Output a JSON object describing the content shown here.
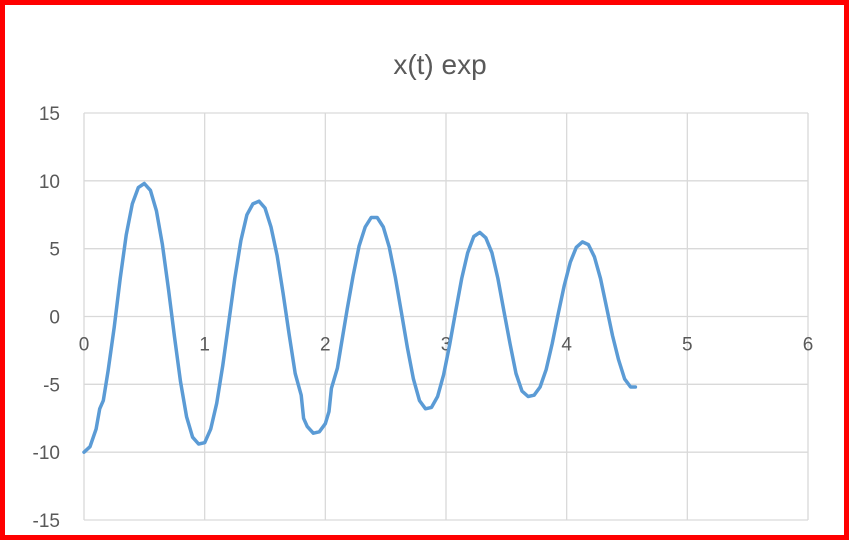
{
  "chart_data": {
    "type": "line",
    "title": "x(t) exp",
    "xlabel": "",
    "ylabel": "",
    "xlim": [
      0,
      6
    ],
    "ylim": [
      -15,
      15
    ],
    "x_ticks": [
      0,
      1,
      2,
      3,
      4,
      5,
      6
    ],
    "y_ticks": [
      15,
      10,
      5,
      0,
      -5,
      -10,
      -15
    ],
    "x_tick_labels": [
      "0",
      "1",
      "2",
      "3",
      "4",
      "5",
      "6"
    ],
    "y_tick_labels": [
      "15",
      "10",
      "5",
      "0",
      "-5",
      "-10",
      "-15"
    ],
    "grid": true,
    "legend": "none",
    "colors": {
      "line": "#5b9bd5",
      "grid": "#d9d9d9",
      "border": "#ff0000",
      "text": "#595959"
    },
    "series": [
      {
        "points": [
          [
            0.0,
            -10.0
          ],
          [
            0.05,
            -9.6
          ],
          [
            0.1,
            -8.3
          ],
          [
            0.13,
            -6.8
          ],
          [
            0.16,
            -6.2
          ],
          [
            0.2,
            -4.0
          ],
          [
            0.25,
            -0.8
          ],
          [
            0.3,
            2.8
          ],
          [
            0.35,
            6.0
          ],
          [
            0.4,
            8.3
          ],
          [
            0.45,
            9.5
          ],
          [
            0.5,
            9.8
          ],
          [
            0.55,
            9.3
          ],
          [
            0.6,
            7.8
          ],
          [
            0.65,
            5.3
          ],
          [
            0.7,
            2.0
          ],
          [
            0.75,
            -1.5
          ],
          [
            0.8,
            -4.8
          ],
          [
            0.85,
            -7.4
          ],
          [
            0.9,
            -8.9
          ],
          [
            0.95,
            -9.4
          ],
          [
            1.0,
            -9.3
          ],
          [
            1.05,
            -8.3
          ],
          [
            1.1,
            -6.4
          ],
          [
            1.15,
            -3.6
          ],
          [
            1.2,
            -0.4
          ],
          [
            1.25,
            2.8
          ],
          [
            1.3,
            5.6
          ],
          [
            1.35,
            7.5
          ],
          [
            1.4,
            8.3
          ],
          [
            1.45,
            8.5
          ],
          [
            1.5,
            8.0
          ],
          [
            1.55,
            6.6
          ],
          [
            1.6,
            4.5
          ],
          [
            1.65,
            1.7
          ],
          [
            1.7,
            -1.3
          ],
          [
            1.75,
            -4.2
          ],
          [
            1.8,
            -5.8
          ],
          [
            1.82,
            -7.5
          ],
          [
            1.85,
            -8.1
          ],
          [
            1.9,
            -8.6
          ],
          [
            1.95,
            -8.5
          ],
          [
            2.0,
            -7.9
          ],
          [
            2.03,
            -7.0
          ],
          [
            2.05,
            -5.3
          ],
          [
            2.1,
            -3.8
          ],
          [
            2.13,
            -2.2
          ],
          [
            2.18,
            0.5
          ],
          [
            2.23,
            3.0
          ],
          [
            2.28,
            5.2
          ],
          [
            2.33,
            6.6
          ],
          [
            2.38,
            7.3
          ],
          [
            2.43,
            7.3
          ],
          [
            2.48,
            6.6
          ],
          [
            2.53,
            5.1
          ],
          [
            2.58,
            2.9
          ],
          [
            2.63,
            0.3
          ],
          [
            2.68,
            -2.3
          ],
          [
            2.73,
            -4.6
          ],
          [
            2.78,
            -6.2
          ],
          [
            2.83,
            -6.8
          ],
          [
            2.88,
            -6.7
          ],
          [
            2.93,
            -5.9
          ],
          [
            2.98,
            -4.3
          ],
          [
            3.03,
            -2.1
          ],
          [
            3.08,
            0.4
          ],
          [
            3.13,
            2.8
          ],
          [
            3.18,
            4.7
          ],
          [
            3.23,
            5.9
          ],
          [
            3.28,
            6.2
          ],
          [
            3.33,
            5.8
          ],
          [
            3.38,
            4.7
          ],
          [
            3.43,
            2.8
          ],
          [
            3.48,
            0.4
          ],
          [
            3.53,
            -2.0
          ],
          [
            3.58,
            -4.2
          ],
          [
            3.63,
            -5.5
          ],
          [
            3.68,
            -5.9
          ],
          [
            3.73,
            -5.8
          ],
          [
            3.78,
            -5.2
          ],
          [
            3.83,
            -3.9
          ],
          [
            3.88,
            -2.0
          ],
          [
            3.93,
            0.2
          ],
          [
            3.98,
            2.3
          ],
          [
            4.03,
            4.0
          ],
          [
            4.08,
            5.1
          ],
          [
            4.13,
            5.5
          ],
          [
            4.18,
            5.3
          ],
          [
            4.23,
            4.4
          ],
          [
            4.28,
            2.8
          ],
          [
            4.33,
            0.7
          ],
          [
            4.38,
            -1.4
          ],
          [
            4.43,
            -3.2
          ],
          [
            4.48,
            -4.6
          ],
          [
            4.53,
            -5.2
          ],
          [
            4.57,
            -5.2
          ]
        ]
      }
    ]
  }
}
